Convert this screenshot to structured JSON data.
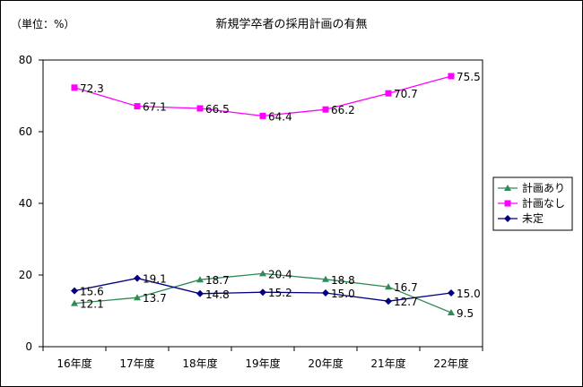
{
  "chart_data": {
    "type": "line",
    "title": "新規学卒者の採用計画の有無",
    "unit_label": "（単位：%）",
    "categories": [
      "16年度",
      "17年度",
      "18年度",
      "19年度",
      "20年度",
      "21年度",
      "22年度"
    ],
    "ylim": [
      0,
      80
    ],
    "yticks": [
      0,
      20,
      40,
      60,
      80
    ],
    "grid": false,
    "legend_position": "right",
    "series": [
      {
        "name": "計画あり",
        "color": "#2e8b57",
        "marker": "triangle",
        "values": [
          12.1,
          13.7,
          18.7,
          20.4,
          18.8,
          16.7,
          9.5
        ],
        "labels": [
          "12.1",
          "13.7",
          "18.7",
          "20.4",
          "18.8",
          "16.7",
          "9.5"
        ]
      },
      {
        "name": "計画なし",
        "color": "#ff00ff",
        "marker": "square",
        "values": [
          72.3,
          67.1,
          66.5,
          64.4,
          66.2,
          70.7,
          75.5
        ],
        "labels": [
          "72.3",
          "67.1",
          "66.5",
          "64.4",
          "66.2",
          "70.7",
          "75.5"
        ]
      },
      {
        "name": "未定",
        "color": "#000080",
        "marker": "diamond",
        "values": [
          15.6,
          19.1,
          14.8,
          15.2,
          15.0,
          12.7,
          15.0
        ],
        "labels": [
          "15.6",
          "19.1",
          "14.8",
          "15.2",
          "15.0",
          "12.7",
          "15.0"
        ]
      }
    ]
  }
}
